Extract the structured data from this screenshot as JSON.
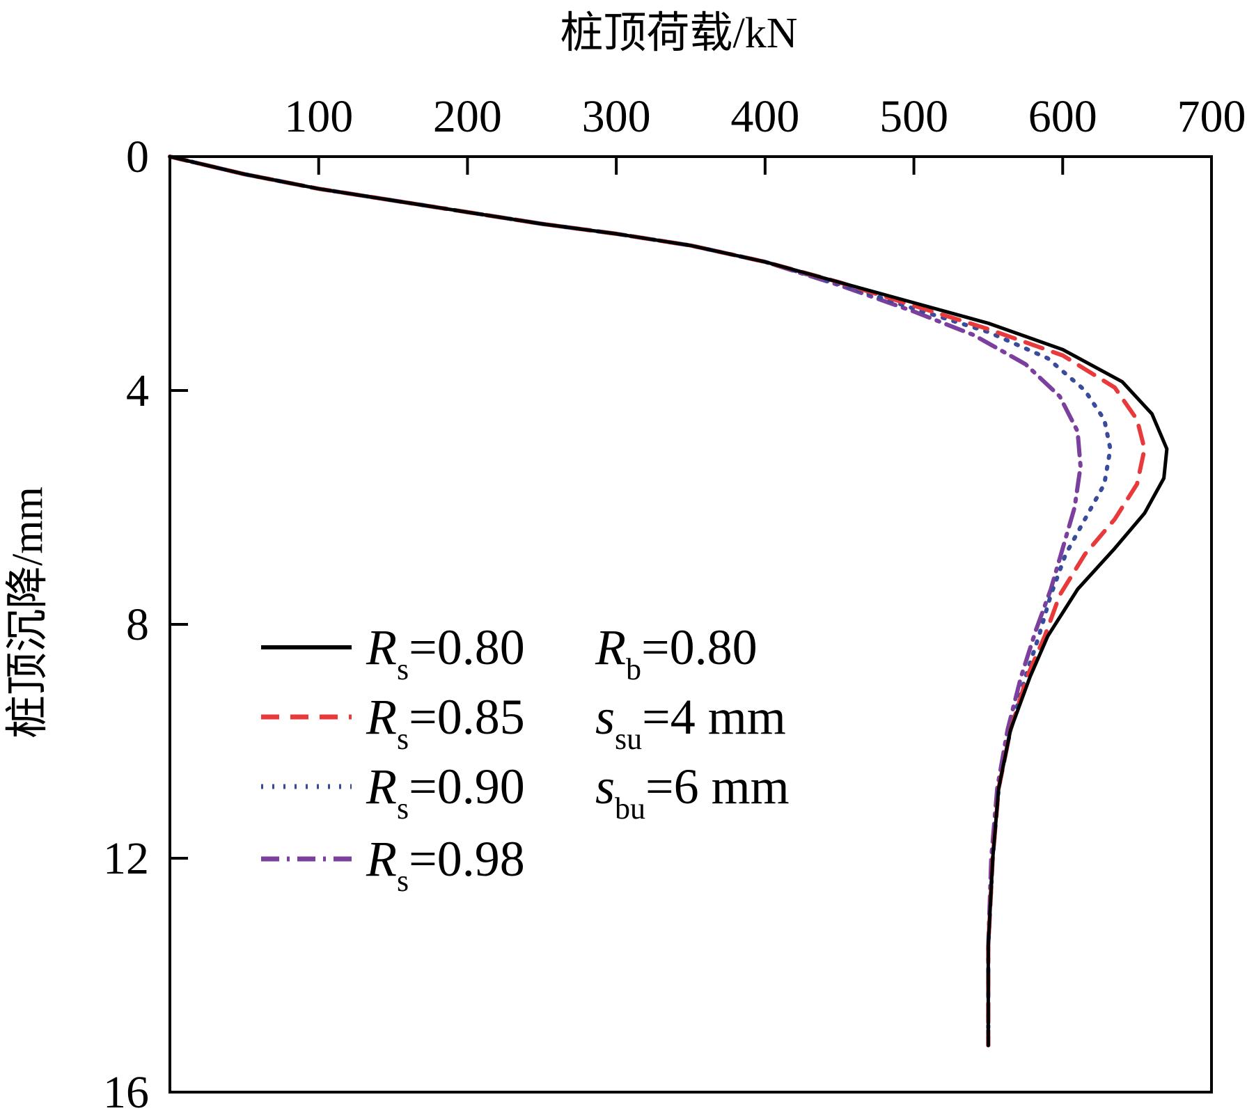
{
  "chart_data": {
    "type": "line",
    "xlabel": "桩顶荷载/kN",
    "ylabel": "桩顶沉降/mm",
    "xlim": [
      0,
      700
    ],
    "ylim": [
      0,
      16
    ],
    "y_inverted": true,
    "x_axis_position": "top",
    "x_ticks": [
      100,
      200,
      300,
      400,
      500,
      600,
      700
    ],
    "x_tick_labels": [
      "100",
      "200",
      "300",
      "400",
      "500",
      "600",
      "700"
    ],
    "y_ticks": [
      0,
      4,
      8,
      12,
      16
    ],
    "y_tick_labels": [
      "0",
      "4",
      "8",
      "12",
      "16"
    ],
    "grid": false,
    "legend_position": "lower-left",
    "series": [
      {
        "name": "Rs=0.80",
        "color": "#000000",
        "style": "solid",
        "points": [
          [
            0,
            0
          ],
          [
            50,
            0.3
          ],
          [
            100,
            0.55
          ],
          [
            150,
            0.75
          ],
          [
            200,
            0.95
          ],
          [
            250,
            1.15
          ],
          [
            300,
            1.32
          ],
          [
            350,
            1.52
          ],
          [
            400,
            1.8
          ],
          [
            450,
            2.15
          ],
          [
            500,
            2.5
          ],
          [
            550,
            2.85
          ],
          [
            600,
            3.3
          ],
          [
            640,
            3.85
          ],
          [
            660,
            4.4
          ],
          [
            670,
            5.0
          ],
          [
            668,
            5.5
          ],
          [
            655,
            6.1
          ],
          [
            635,
            6.7
          ],
          [
            610,
            7.4
          ],
          [
            590,
            8.2
          ],
          [
            578,
            8.9
          ],
          [
            565,
            9.8
          ],
          [
            557,
            10.8
          ],
          [
            553,
            12.0
          ],
          [
            550,
            13.5
          ],
          [
            550,
            15.2
          ]
        ]
      },
      {
        "name": "Rs=0.85",
        "color": "#e8393b",
        "style": "dash",
        "points": [
          [
            0,
            0
          ],
          [
            50,
            0.3
          ],
          [
            100,
            0.55
          ],
          [
            150,
            0.75
          ],
          [
            200,
            0.95
          ],
          [
            250,
            1.15
          ],
          [
            300,
            1.32
          ],
          [
            350,
            1.52
          ],
          [
            400,
            1.8
          ],
          [
            450,
            2.15
          ],
          [
            500,
            2.55
          ],
          [
            550,
            2.95
          ],
          [
            600,
            3.4
          ],
          [
            635,
            3.95
          ],
          [
            650,
            4.5
          ],
          [
            655,
            5.0
          ],
          [
            650,
            5.6
          ],
          [
            635,
            6.2
          ],
          [
            615,
            6.8
          ],
          [
            598,
            7.5
          ],
          [
            588,
            8.2
          ],
          [
            576,
            8.9
          ],
          [
            565,
            9.8
          ],
          [
            557,
            10.8
          ],
          [
            553,
            12.0
          ],
          [
            550,
            13.5
          ],
          [
            550,
            15.2
          ]
        ]
      },
      {
        "name": "Rs=0.90",
        "color": "#3b4b9c",
        "style": "dot",
        "points": [
          [
            0,
            0
          ],
          [
            50,
            0.3
          ],
          [
            100,
            0.55
          ],
          [
            150,
            0.75
          ],
          [
            200,
            0.95
          ],
          [
            250,
            1.15
          ],
          [
            300,
            1.32
          ],
          [
            350,
            1.52
          ],
          [
            400,
            1.8
          ],
          [
            450,
            2.18
          ],
          [
            500,
            2.6
          ],
          [
            550,
            3.0
          ],
          [
            590,
            3.45
          ],
          [
            615,
            4.0
          ],
          [
            628,
            4.5
          ],
          [
            632,
            5.0
          ],
          [
            628,
            5.6
          ],
          [
            615,
            6.2
          ],
          [
            602,
            6.8
          ],
          [
            592,
            7.5
          ],
          [
            584,
            8.2
          ],
          [
            575,
            8.9
          ],
          [
            565,
            9.8
          ],
          [
            557,
            10.8
          ],
          [
            553,
            12.0
          ],
          [
            550,
            13.5
          ],
          [
            550,
            15.2
          ]
        ]
      },
      {
        "name": "Rs=0.98",
        "color": "#7b3f9d",
        "style": "dashdot",
        "points": [
          [
            0,
            0
          ],
          [
            50,
            0.3
          ],
          [
            100,
            0.55
          ],
          [
            150,
            0.75
          ],
          [
            200,
            0.95
          ],
          [
            250,
            1.15
          ],
          [
            300,
            1.32
          ],
          [
            350,
            1.52
          ],
          [
            400,
            1.8
          ],
          [
            450,
            2.2
          ],
          [
            500,
            2.65
          ],
          [
            540,
            3.05
          ],
          [
            575,
            3.55
          ],
          [
            598,
            4.1
          ],
          [
            610,
            4.7
          ],
          [
            612,
            5.3
          ],
          [
            608,
            6.0
          ],
          [
            600,
            6.7
          ],
          [
            592,
            7.4
          ],
          [
            582,
            8.1
          ],
          [
            572,
            8.9
          ],
          [
            563,
            9.8
          ],
          [
            556,
            10.8
          ],
          [
            552,
            12.0
          ],
          [
            550,
            13.5
          ],
          [
            550,
            15.2
          ]
        ]
      }
    ],
    "legend": [
      {
        "sym": "R",
        "sub": "s",
        "rest": "=0.80"
      },
      {
        "sym": "R",
        "sub": "s",
        "rest": "=0.85"
      },
      {
        "sym": "R",
        "sub": "s",
        "rest": "=0.90"
      },
      {
        "sym": "R",
        "sub": "s",
        "rest": "=0.98"
      }
    ],
    "annotations": [
      {
        "sym": "R",
        "sub": "b",
        "rest": "=0.80"
      },
      {
        "sym": "s",
        "sub": "su",
        "rest": "=4 mm"
      },
      {
        "sym": "s",
        "sub": "bu",
        "rest": "=6 mm"
      }
    ]
  }
}
